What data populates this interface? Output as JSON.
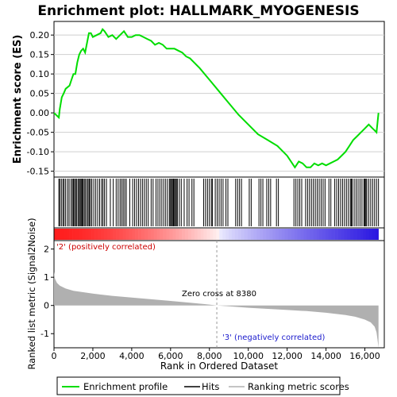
{
  "chart_data": {
    "type": "line",
    "title": "Enrichment plot: HALLMARK_MYOGENESIS",
    "top_panel": {
      "ylabel": "Enrichment score (ES)",
      "ylim": [
        -0.165,
        0.235
      ],
      "yticks": [
        -0.15,
        -0.1,
        -0.05,
        0.0,
        0.05,
        0.1,
        0.15,
        0.2
      ],
      "ytick_labels": [
        "-0.15",
        "-0.10",
        "-0.05",
        "0.00",
        "0.05",
        "0.10",
        "0.15",
        "0.20"
      ],
      "series": [
        {
          "name": "Enrichment profile",
          "color": "#00dd00",
          "x": [
            0,
            250,
            300,
            400,
            500,
            600,
            800,
            900,
            1000,
            1100,
            1200,
            1300,
            1400,
            1500,
            1600,
            1700,
            1800,
            1900,
            2000,
            2200,
            2400,
            2500,
            2600,
            2800,
            3000,
            3200,
            3400,
            3600,
            3800,
            4000,
            4200,
            4400,
            4600,
            4800,
            5000,
            5200,
            5400,
            5600,
            5800,
            6000,
            6200,
            6400,
            6600,
            6800,
            7000,
            7200,
            7500,
            8000,
            8500,
            9000,
            9500,
            10000,
            10500,
            11000,
            11500,
            12000,
            12200,
            12400,
            12600,
            12800,
            13000,
            13200,
            13400,
            13600,
            13800,
            14000,
            14200,
            14400,
            14600,
            14800,
            15000,
            15200,
            15400,
            15600,
            15800,
            16000,
            16200,
            16400,
            16500,
            16600,
            16700
          ],
          "y": [
            0.0,
            -0.012,
            0.01,
            0.04,
            0.05,
            0.062,
            0.07,
            0.085,
            0.1,
            0.1,
            0.13,
            0.15,
            0.16,
            0.165,
            0.155,
            0.18,
            0.205,
            0.205,
            0.195,
            0.2,
            0.205,
            0.215,
            0.21,
            0.195,
            0.2,
            0.19,
            0.2,
            0.21,
            0.195,
            0.195,
            0.2,
            0.2,
            0.195,
            0.19,
            0.185,
            0.175,
            0.18,
            0.175,
            0.165,
            0.165,
            0.165,
            0.16,
            0.155,
            0.145,
            0.14,
            0.13,
            0.115,
            0.085,
            0.055,
            0.025,
            -0.005,
            -0.03,
            -0.055,
            -0.07,
            -0.085,
            -0.11,
            -0.125,
            -0.14,
            -0.125,
            -0.13,
            -0.14,
            -0.14,
            -0.13,
            -0.135,
            -0.13,
            -0.135,
            -0.13,
            -0.125,
            -0.12,
            -0.11,
            -0.1,
            -0.085,
            -0.07,
            -0.06,
            -0.05,
            -0.04,
            -0.03,
            -0.04,
            -0.045,
            -0.05,
            0.0
          ]
        }
      ]
    },
    "hits": {
      "name": "Hits",
      "positions": [
        250,
        300,
        380,
        460,
        520,
        600,
        700,
        780,
        880,
        950,
        1000,
        1060,
        1110,
        1170,
        1240,
        1300,
        1350,
        1400,
        1450,
        1500,
        1560,
        1620,
        1700,
        1760,
        1820,
        1880,
        1950,
        2050,
        2150,
        2250,
        2350,
        2450,
        2520,
        2600,
        2700,
        2900,
        3050,
        3200,
        3300,
        3400,
        3480,
        3560,
        3640,
        3720,
        3900,
        4050,
        4150,
        4250,
        4350,
        4450,
        4550,
        4650,
        4750,
        4850,
        5000,
        5100,
        5250,
        5350,
        5450,
        5550,
        5650,
        5750,
        5850,
        5950,
        6000,
        6050,
        6100,
        6150,
        6200,
        6250,
        6300,
        6350,
        6450,
        6550,
        6700,
        6850,
        6950,
        7100,
        7200,
        7700,
        7800,
        7900,
        8000,
        8100,
        8150,
        8300,
        8400,
        8500,
        8600,
        8700,
        8850,
        8950,
        9350,
        9450,
        9550,
        9650,
        10050,
        10150,
        10550,
        10650,
        10750,
        10950,
        11050,
        11150,
        11450,
        11550,
        12350,
        12450,
        12550,
        12650,
        12750,
        12950,
        13050,
        13150,
        13250,
        13350,
        13450,
        13550,
        13650,
        13750,
        13850,
        13950,
        14150,
        14250,
        14450,
        14550,
        14650,
        14750,
        14850,
        14950,
        15050,
        15150,
        15250,
        15300,
        15350,
        15450,
        15550,
        15650,
        15750,
        15850,
        15950,
        16000,
        16050,
        16100,
        16200,
        16300,
        16400,
        16500,
        16600,
        16700
      ]
    },
    "ranking_panel": {
      "type": "area",
      "name": "Ranking metric scores",
      "ylabel": "Ranked list metric (Signal2Noise)",
      "ylim": [
        -1.5,
        2.3
      ],
      "yticks": [
        -1,
        0,
        1,
        2
      ],
      "ytick_labels": [
        "-1",
        "0",
        "1",
        "2"
      ],
      "x": [
        0,
        50,
        150,
        300,
        600,
        1000,
        2000,
        3000,
        4000,
        5000,
        6000,
        7000,
        8000,
        8380,
        9000,
        10000,
        11000,
        12000,
        13000,
        14000,
        15000,
        15500,
        16000,
        16300,
        16500,
        16600,
        16650,
        16700
      ],
      "y": [
        1.2,
        0.95,
        0.8,
        0.7,
        0.6,
        0.52,
        0.42,
        0.34,
        0.28,
        0.22,
        0.16,
        0.1,
        0.03,
        0.0,
        -0.03,
        -0.08,
        -0.12,
        -0.16,
        -0.2,
        -0.26,
        -0.34,
        -0.4,
        -0.5,
        -0.6,
        -0.75,
        -0.95,
        -1.2,
        -1.5
      ],
      "zero_cross_label": "Zero cross at 8380",
      "zero_cross_x": 8380,
      "pos_label": "'2' (positively correlated)",
      "neg_label": "'3' (negatively correlated)"
    },
    "xlabel": "Rank in Ordered Dataset",
    "xlim": [
      0,
      17000
    ],
    "xticks": [
      0,
      2000,
      4000,
      6000,
      8000,
      10000,
      12000,
      14000,
      16000
    ],
    "xtick_labels": [
      "0",
      "2,000",
      "4,000",
      "6,000",
      "8,000",
      "10,000",
      "12,000",
      "14,000",
      "16,000"
    ],
    "n_genes": 16700,
    "legend": [
      {
        "label": "Enrichment profile",
        "color": "#00dd00"
      },
      {
        "label": "Hits",
        "color": "#000000"
      },
      {
        "label": "Ranking metric scores",
        "color": "#b0b0b0"
      }
    ],
    "legend_position": "bottom"
  }
}
